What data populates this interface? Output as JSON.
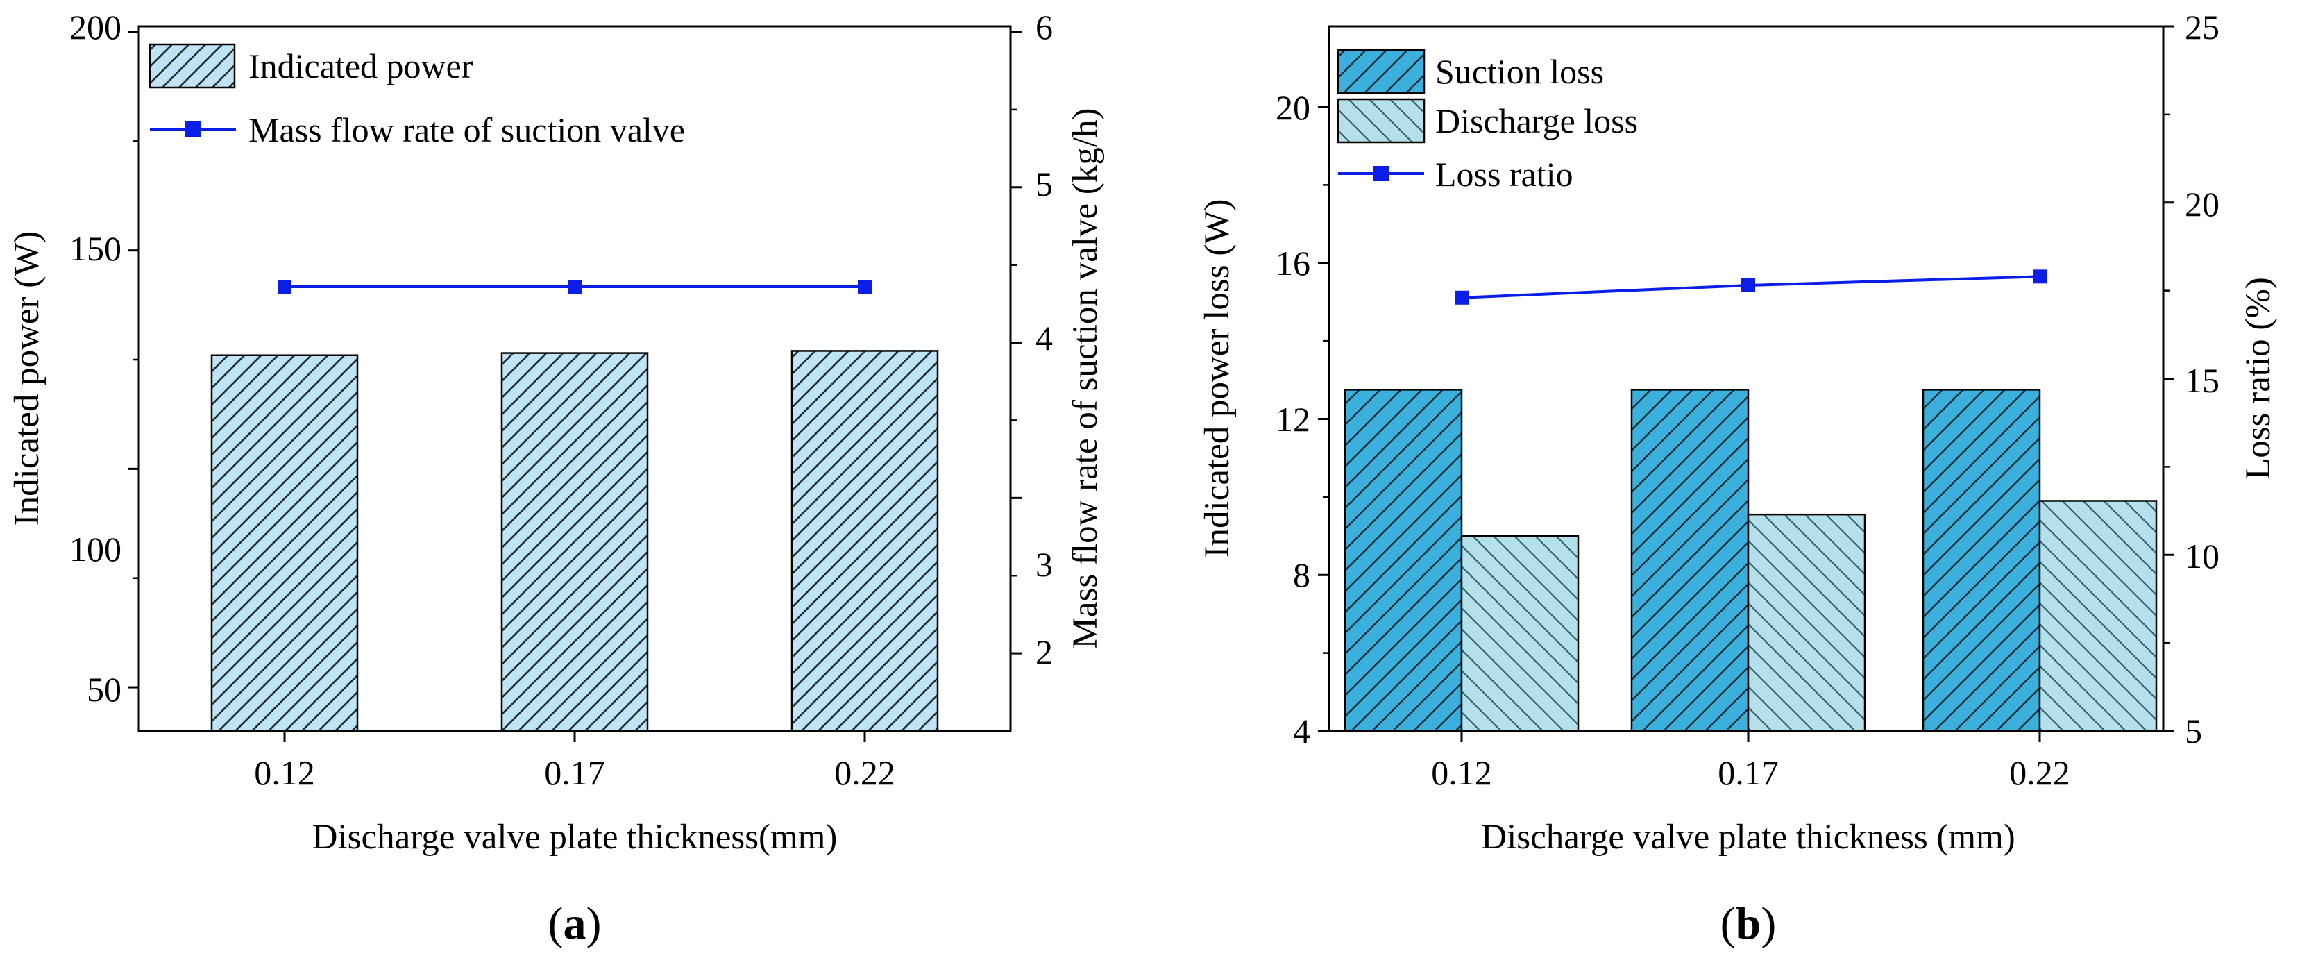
{
  "colors": {
    "bar_a": "#bfe4f5",
    "bar_suction": "#3bb0dc",
    "bar_discharge": "#b3e0ea",
    "line": "#0b1ee8",
    "axis": "#000000"
  },
  "chart_data": [
    {
      "type": "bar",
      "panel": "a",
      "panel_label": {
        "open": "(",
        "letter": "a",
        "close": ")"
      },
      "categories": [
        "0.12",
        "0.17",
        "0.22"
      ],
      "xlabel": "Discharge valve plate thickness(mm)",
      "ylabel": "Indicated power (W)",
      "y2label": "Mass flow rate of suction valve (kg/h)",
      "ylim": [
        40,
        200
      ],
      "yticks": [
        "50",
        "100",
        "150",
        "200"
      ],
      "y2lim": [
        1.5,
        6
      ],
      "y2ticks": [
        "2",
        "3",
        "4",
        "5",
        "6"
      ],
      "series": [
        {
          "name": "Indicated power",
          "type": "bar",
          "axis": "left",
          "values": [
            126,
            126.5,
            127
          ]
        },
        {
          "name": "Mass flow rate of suction valve",
          "type": "line",
          "axis": "right",
          "values": [
            4.36,
            4.36,
            4.36
          ]
        }
      ],
      "legend": [
        "Indicated power",
        "Mass flow rate of suction valve"
      ],
      "legend_position": "top-left"
    },
    {
      "type": "bar",
      "panel": "b",
      "panel_label": {
        "open": "(",
        "letter": "b",
        "close": ")"
      },
      "categories": [
        "0.12",
        "0.17",
        "0.22"
      ],
      "xlabel": "Discharge valve plate thickness (mm)",
      "ylabel": "Indicated power loss (W)",
      "y2label": "Loss ratio (%)",
      "ylim": [
        4,
        22
      ],
      "yticks": [
        "4",
        "8",
        "12",
        "16",
        "20"
      ],
      "y2lim": [
        5,
        25
      ],
      "y2ticks": [
        "5",
        "10",
        "15",
        "20",
        "25"
      ],
      "series": [
        {
          "name": "Suction loss",
          "type": "bar",
          "axis": "left",
          "values": [
            12.75,
            12.75,
            12.75
          ]
        },
        {
          "name": "Discharge loss",
          "type": "bar",
          "axis": "left",
          "values": [
            9.0,
            9.55,
            9.9
          ]
        },
        {
          "name": "Loss ratio",
          "type": "line",
          "axis": "right",
          "values": [
            17.3,
            17.65,
            17.9
          ]
        }
      ],
      "legend": [
        "Suction loss",
        "Discharge loss",
        "Loss ratio"
      ],
      "legend_position": "top-left"
    }
  ]
}
